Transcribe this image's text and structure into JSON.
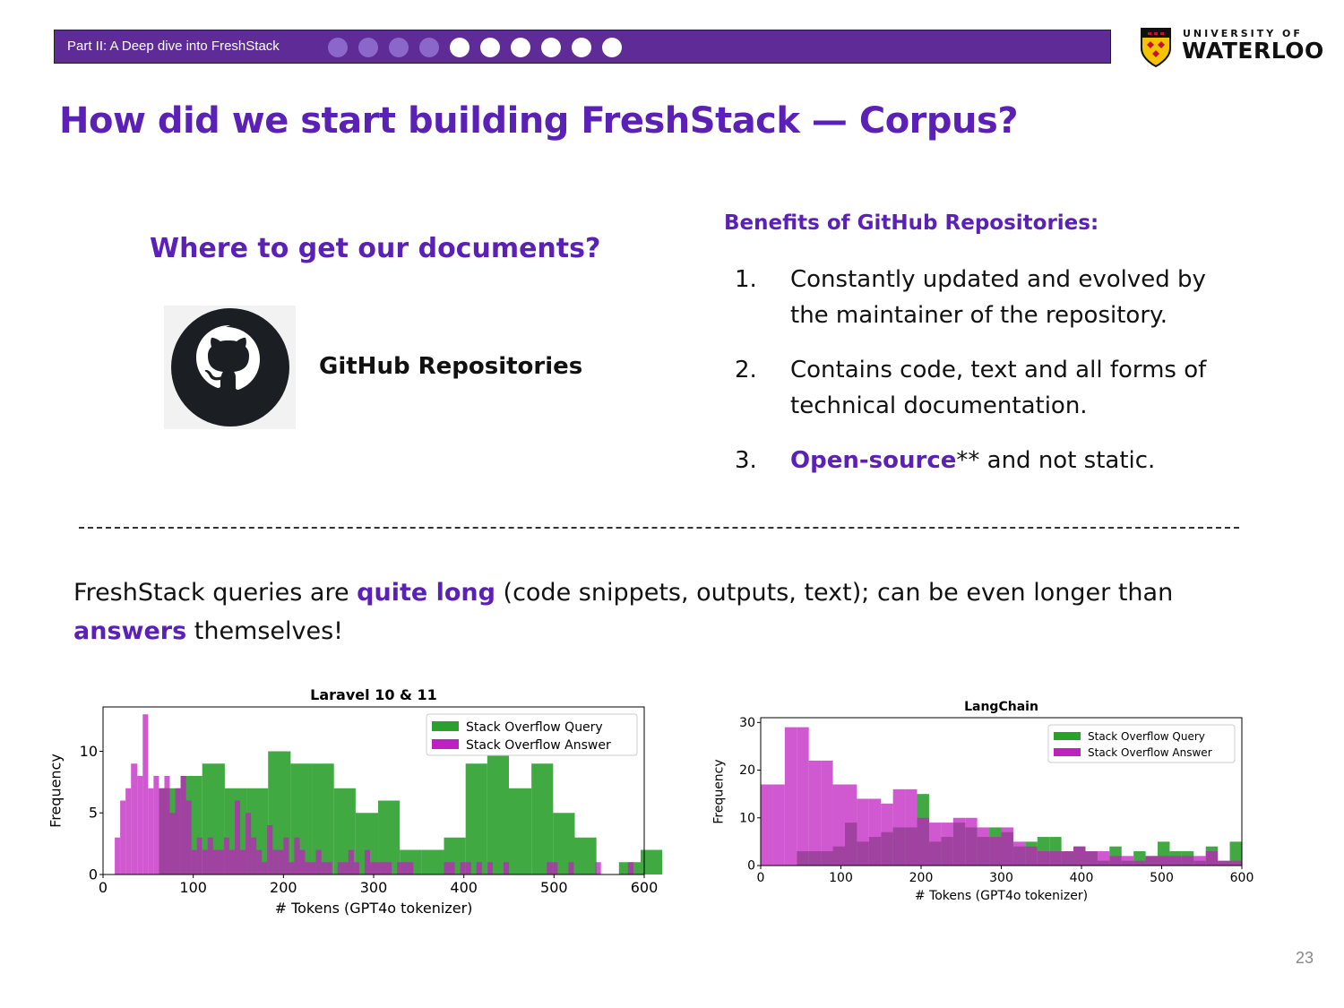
{
  "header": {
    "section_label": "Part II: A Deep dive into FreshStack",
    "progress": {
      "completed": 4,
      "total": 10
    },
    "dot_colors": {
      "done": "#8b67c9",
      "todo": "#ffffff"
    },
    "bar_color": "#5e2b97",
    "logo": {
      "top": "UNIVERSITY OF",
      "bottom": "WATERLOO"
    }
  },
  "slide": {
    "title": "How did we start building FreshStack — Corpus?",
    "left": {
      "question": "Where to get our documents?",
      "source_label": "GitHub Repositories",
      "icon": "github-octocat-icon"
    },
    "benefits": {
      "title": "Benefits of GitHub Repositories:",
      "items": [
        {
          "num": "1.",
          "lines": [
            "Constantly updated and evolved by",
            "the maintainer of the repository."
          ]
        },
        {
          "num": "2.",
          "lines": [
            "Contains code, text and all forms of",
            "technical documentation."
          ]
        },
        {
          "num": "3.",
          "highlight": "Open-source",
          "rest": "** and not static."
        }
      ]
    },
    "paragraph": {
      "p1": "FreshStack queries are ",
      "h1": "quite long",
      "p2": " (code snippets, outputs, text); can be even longer than",
      "h2": "answers",
      "p3": " themselves!"
    },
    "page_number": "23",
    "accent_color": "#5b21b6"
  },
  "chart_data": [
    {
      "type": "bar",
      "title": "Laravel 10 & 11",
      "xlabel": "# Tokens (GPT4o tokenizer)",
      "ylabel": "Frequency",
      "xlim": [
        0,
        600
      ],
      "ylim": [
        0,
        13.6
      ],
      "xticks": [
        0,
        100,
        200,
        300,
        400,
        500,
        600
      ],
      "yticks": [
        0,
        5,
        10
      ],
      "legend": "top-right",
      "grid": false,
      "series": [
        {
          "name": "Stack Overflow Query",
          "color": "#2ca02c",
          "bins": [
            [
              62,
              86,
              7
            ],
            [
              86,
              110,
              8
            ],
            [
              110,
              135,
              9
            ],
            [
              135,
              159,
              7
            ],
            [
              159,
              183,
              7
            ],
            [
              183,
              208,
              10
            ],
            [
              208,
              232,
              9
            ],
            [
              232,
              256,
              9
            ],
            [
              256,
              280,
              7
            ],
            [
              280,
              305,
              5
            ],
            [
              305,
              329,
              6
            ],
            [
              329,
              353,
              2
            ],
            [
              353,
              378,
              2
            ],
            [
              378,
              402,
              3
            ],
            [
              402,
              426,
              9
            ],
            [
              426,
              450,
              10
            ],
            [
              450,
              475,
              7
            ],
            [
              475,
              499,
              9
            ],
            [
              499,
              523,
              5
            ],
            [
              523,
              547,
              3
            ],
            [
              547,
              572,
              0
            ],
            [
              572,
              596,
              1
            ],
            [
              596,
              620,
              2
            ]
          ]
        },
        {
          "name": "Stack Overflow Answer",
          "color": "#c020c0",
          "bins": [
            [
              13,
              19,
              3
            ],
            [
              19,
              25,
              6
            ],
            [
              25,
              31,
              7
            ],
            [
              31,
              38,
              9
            ],
            [
              38,
              44,
              8
            ],
            [
              44,
              50,
              13
            ],
            [
              50,
              56,
              7
            ],
            [
              56,
              62,
              8
            ],
            [
              62,
              68,
              7
            ],
            [
              68,
              74,
              8
            ],
            [
              74,
              80,
              5
            ],
            [
              80,
              86,
              7
            ],
            [
              86,
              92,
              8
            ],
            [
              92,
              98,
              6
            ],
            [
              98,
              104,
              2
            ],
            [
              104,
              110,
              3
            ],
            [
              110,
              116,
              2
            ],
            [
              116,
              122,
              3
            ],
            [
              122,
              128,
              2
            ],
            [
              128,
              134,
              2
            ],
            [
              134,
              140,
              3
            ],
            [
              140,
              146,
              2
            ],
            [
              146,
              152,
              6
            ],
            [
              152,
              158,
              2
            ],
            [
              158,
              164,
              5
            ],
            [
              164,
              170,
              3
            ],
            [
              170,
              176,
              2
            ],
            [
              176,
              182,
              1
            ],
            [
              182,
              188,
              4
            ],
            [
              188,
              194,
              2
            ],
            [
              194,
              200,
              2
            ],
            [
              200,
              206,
              3
            ],
            [
              206,
              212,
              1
            ],
            [
              212,
              218,
              3
            ],
            [
              218,
              224,
              2
            ],
            [
              224,
              236,
              1
            ],
            [
              236,
              242,
              2
            ],
            [
              242,
              248,
              1
            ],
            [
              248,
              254,
              1
            ],
            [
              254,
              260,
              0
            ],
            [
              260,
              266,
              1
            ],
            [
              266,
              272,
              1
            ],
            [
              272,
              278,
              2
            ],
            [
              278,
              284,
              1
            ],
            [
              284,
              290,
              0
            ],
            [
              290,
              296,
              2
            ],
            [
              296,
              302,
              1
            ],
            [
              302,
              308,
              1
            ],
            [
              308,
              314,
              1
            ],
            [
              314,
              320,
              1
            ],
            [
              320,
              326,
              0
            ],
            [
              326,
              332,
              1
            ],
            [
              332,
              338,
              1
            ],
            [
              338,
              344,
              1
            ],
            [
              344,
              350,
              0
            ],
            [
              350,
              356,
              0
            ],
            [
              378,
              384,
              1
            ],
            [
              384,
              390,
              1
            ],
            [
              390,
              396,
              0
            ],
            [
              396,
              402,
              1
            ],
            [
              402,
              408,
              1
            ],
            [
              408,
              414,
              0
            ],
            [
              414,
              420,
              1
            ],
            [
              420,
              426,
              0
            ],
            [
              426,
              432,
              1
            ],
            [
              432,
              438,
              0
            ],
            [
              438,
              444,
              0
            ],
            [
              444,
              450,
              1
            ],
            [
              450,
              456,
              0
            ],
            [
              456,
              462,
              0
            ],
            [
              462,
              468,
              0
            ],
            [
              468,
              474,
              0
            ],
            [
              474,
              480,
              0
            ],
            [
              480,
              486,
              0
            ],
            [
              486,
              492,
              0
            ],
            [
              492,
              498,
              1
            ],
            [
              498,
              504,
              1
            ],
            [
              504,
              516,
              0
            ],
            [
              516,
              522,
              1
            ],
            [
              522,
              528,
              0
            ],
            [
              528,
              546,
              0
            ],
            [
              546,
              552,
              1
            ],
            [
              552,
              564,
              0
            ],
            [
              564,
              570,
              0
            ],
            [
              570,
              582,
              0
            ],
            [
              582,
              588,
              1
            ],
            [
              588,
              600,
              0
            ]
          ]
        }
      ]
    },
    {
      "type": "bar",
      "title": "LangChain",
      "xlabel": "# Tokens (GPT4o tokenizer)",
      "ylabel": "Frequency",
      "xlim": [
        0,
        600
      ],
      "ylim": [
        0,
        31
      ],
      "xticks": [
        0,
        100,
        200,
        300,
        400,
        500,
        600
      ],
      "yticks": [
        0,
        10,
        20,
        30
      ],
      "legend": "top-right",
      "grid": false,
      "series": [
        {
          "name": "Stack Overflow Query",
          "color": "#2ca02c",
          "bins": [
            [
              0,
              15,
              0
            ],
            [
              15,
              30,
              0
            ],
            [
              30,
              45,
              0
            ],
            [
              45,
              60,
              3
            ],
            [
              60,
              75,
              3
            ],
            [
              75,
              90,
              3
            ],
            [
              90,
              105,
              4
            ],
            [
              105,
              120,
              9
            ],
            [
              120,
              135,
              5
            ],
            [
              135,
              150,
              6
            ],
            [
              150,
              165,
              7
            ],
            [
              165,
              180,
              8
            ],
            [
              180,
              195,
              8
            ],
            [
              195,
              210,
              15
            ],
            [
              210,
              225,
              5
            ],
            [
              225,
              240,
              6
            ],
            [
              240,
              255,
              9
            ],
            [
              255,
              270,
              8
            ],
            [
              270,
              285,
              6
            ],
            [
              285,
              300,
              8
            ],
            [
              300,
              315,
              7
            ],
            [
              315,
              330,
              4
            ],
            [
              330,
              345,
              5
            ],
            [
              345,
              360,
              6
            ],
            [
              360,
              375,
              6
            ],
            [
              375,
              390,
              3
            ],
            [
              390,
              405,
              4
            ],
            [
              405,
              420,
              3
            ],
            [
              420,
              435,
              1
            ],
            [
              435,
              450,
              4
            ],
            [
              450,
              465,
              1
            ],
            [
              465,
              480,
              3
            ],
            [
              480,
              495,
              2
            ],
            [
              495,
              510,
              5
            ],
            [
              510,
              525,
              3
            ],
            [
              525,
              540,
              3
            ],
            [
              540,
              555,
              1
            ],
            [
              555,
              570,
              4
            ],
            [
              570,
              585,
              1
            ],
            [
              585,
              600,
              5
            ]
          ]
        },
        {
          "name": "Stack Overflow Answer",
          "color": "#c020c0",
          "bins": [
            [
              0,
              15,
              17
            ],
            [
              15,
              30,
              17
            ],
            [
              30,
              45,
              29
            ],
            [
              45,
              60,
              29
            ],
            [
              60,
              75,
              22
            ],
            [
              75,
              90,
              22
            ],
            [
              90,
              105,
              17
            ],
            [
              105,
              120,
              17
            ],
            [
              120,
              135,
              14
            ],
            [
              135,
              150,
              14
            ],
            [
              150,
              165,
              13
            ],
            [
              165,
              180,
              16
            ],
            [
              180,
              195,
              16
            ],
            [
              195,
              210,
              10
            ],
            [
              210,
              225,
              9
            ],
            [
              225,
              240,
              9
            ],
            [
              240,
              255,
              10
            ],
            [
              255,
              270,
              10
            ],
            [
              270,
              285,
              8
            ],
            [
              285,
              300,
              6
            ],
            [
              300,
              315,
              8
            ],
            [
              315,
              330,
              5
            ],
            [
              330,
              345,
              4
            ],
            [
              345,
              360,
              3
            ],
            [
              360,
              375,
              3
            ],
            [
              375,
              390,
              3
            ],
            [
              390,
              405,
              4
            ],
            [
              405,
              420,
              3
            ],
            [
              420,
              435,
              3
            ],
            [
              435,
              450,
              2
            ],
            [
              450,
              465,
              2
            ],
            [
              465,
              480,
              1
            ],
            [
              480,
              495,
              2
            ],
            [
              495,
              510,
              2
            ],
            [
              510,
              525,
              2
            ],
            [
              525,
              540,
              2
            ],
            [
              540,
              555,
              2
            ],
            [
              555,
              570,
              3
            ],
            [
              570,
              585,
              1
            ],
            [
              585,
              600,
              1
            ]
          ]
        }
      ]
    }
  ]
}
